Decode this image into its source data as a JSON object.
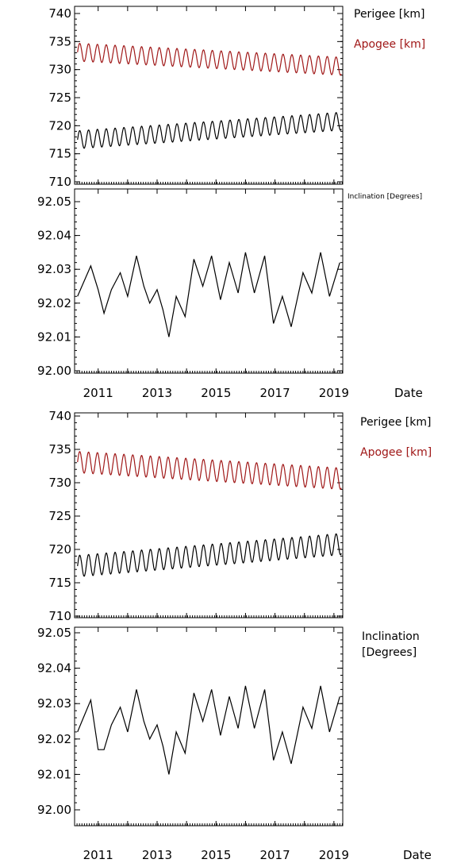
{
  "chart_data": [
    {
      "type": "line",
      "panel": "top-orbit",
      "series": [
        {
          "name": "Perigee [km]",
          "color": "#000000",
          "mean_start": 717.5,
          "mean_end": 720.8,
          "amplitude": 1.6,
          "period_years": 0.3
        },
        {
          "name": "Apogee [km]",
          "color": "#a01818",
          "mean_start": 733.1,
          "mean_end": 730.6,
          "amplitude": 1.6,
          "period_years": 0.3
        }
      ],
      "xlim": [
        2010.2,
        2019.3
      ],
      "ylim": [
        710,
        740
      ],
      "yticks": [
        "740",
        "735",
        "730",
        "725",
        "720",
        "715",
        "710"
      ],
      "legend": [
        "Perigee [km]",
        "Apogee [km]"
      ]
    },
    {
      "type": "line",
      "panel": "top-inclination",
      "series": [
        {
          "name": "Inclination [Degrees]",
          "color": "#000000",
          "points": [
            [
              2010.3,
              92.022
            ],
            [
              2010.5,
              92.026
            ],
            [
              2010.75,
              92.031
            ],
            [
              2011.0,
              92.024
            ],
            [
              2011.2,
              92.017
            ],
            [
              2011.45,
              92.024
            ],
            [
              2011.75,
              92.029
            ],
            [
              2012.0,
              92.022
            ],
            [
              2012.3,
              92.034
            ],
            [
              2012.55,
              92.025
            ],
            [
              2012.75,
              92.02
            ],
            [
              2013.0,
              92.024
            ],
            [
              2013.2,
              92.018
            ],
            [
              2013.4,
              92.01
            ],
            [
              2013.65,
              92.022
            ],
            [
              2013.95,
              92.016
            ],
            [
              2014.25,
              92.033
            ],
            [
              2014.55,
              92.025
            ],
            [
              2014.85,
              92.034
            ],
            [
              2015.15,
              92.021
            ],
            [
              2015.45,
              92.032
            ],
            [
              2015.75,
              92.023
            ],
            [
              2016.0,
              92.035
            ],
            [
              2016.3,
              92.023
            ],
            [
              2016.65,
              92.034
            ],
            [
              2016.95,
              92.014
            ],
            [
              2017.25,
              92.022
            ],
            [
              2017.55,
              92.013
            ],
            [
              2017.95,
              92.029
            ],
            [
              2018.25,
              92.023
            ],
            [
              2018.55,
              92.035
            ],
            [
              2018.85,
              92.022
            ],
            [
              2019.2,
              92.032
            ]
          ]
        }
      ],
      "xlim": [
        2010.2,
        2019.3
      ],
      "ylim": [
        92.0,
        92.06
      ],
      "yticks": [
        "92.05",
        "92.04",
        "92.03",
        "92.02",
        "92.01",
        "92.00"
      ],
      "xticks": [
        "2011",
        "2013",
        "2015",
        "2017",
        "2019"
      ],
      "xlabel": "Date",
      "legend": [
        "Inclination [Degrees]"
      ]
    },
    {
      "type": "line",
      "panel": "bottom-orbit",
      "series": [
        {
          "name": "Perigee [km]",
          "color": "#000000",
          "mean_start": 717.5,
          "mean_end": 720.8,
          "amplitude": 1.6,
          "period_years": 0.3
        },
        {
          "name": "Apogee [km]",
          "color": "#a01818",
          "mean_start": 733.1,
          "mean_end": 730.6,
          "amplitude": 1.6,
          "period_years": 0.3
        }
      ],
      "xlim": [
        2010.2,
        2019.3
      ],
      "ylim": [
        710,
        740
      ],
      "yticks": [
        "740",
        "735",
        "730",
        "725",
        "720",
        "715",
        "710"
      ],
      "legend": [
        "Perigee [km]",
        "Apogee [km]"
      ]
    },
    {
      "type": "line",
      "panel": "bottom-inclination",
      "series": [
        {
          "name": "Inclination [Degrees]",
          "color": "#000000",
          "points": [
            [
              2010.3,
              92.022
            ],
            [
              2010.5,
              92.026
            ],
            [
              2010.75,
              92.031
            ],
            [
              2011.0,
              92.017
            ],
            [
              2011.2,
              92.017
            ],
            [
              2011.45,
              92.024
            ],
            [
              2011.75,
              92.029
            ],
            [
              2012.0,
              92.022
            ],
            [
              2012.3,
              92.034
            ],
            [
              2012.55,
              92.025
            ],
            [
              2012.75,
              92.02
            ],
            [
              2013.0,
              92.024
            ],
            [
              2013.2,
              92.018
            ],
            [
              2013.4,
              92.01
            ],
            [
              2013.65,
              92.022
            ],
            [
              2013.95,
              92.016
            ],
            [
              2014.25,
              92.033
            ],
            [
              2014.55,
              92.025
            ],
            [
              2014.85,
              92.034
            ],
            [
              2015.15,
              92.021
            ],
            [
              2015.45,
              92.032
            ],
            [
              2015.75,
              92.023
            ],
            [
              2016.0,
              92.035
            ],
            [
              2016.3,
              92.023
            ],
            [
              2016.65,
              92.034
            ],
            [
              2016.95,
              92.014
            ],
            [
              2017.25,
              92.022
            ],
            [
              2017.55,
              92.013
            ],
            [
              2017.95,
              92.029
            ],
            [
              2018.25,
              92.023
            ],
            [
              2018.55,
              92.035
            ],
            [
              2018.85,
              92.022
            ],
            [
              2019.2,
              92.032
            ]
          ]
        }
      ],
      "xlim": [
        2010.2,
        2019.3
      ],
      "ylim": [
        92.0,
        92.05
      ],
      "yticks": [
        "92.05",
        "92.04",
        "92.03",
        "92.02",
        "92.01",
        "92.00"
      ],
      "xticks": [
        "2011",
        "2013",
        "2015",
        "2017",
        "2019"
      ],
      "xlabel": "Date",
      "legend": [
        "Inclination",
        "[Degrees]"
      ]
    }
  ]
}
